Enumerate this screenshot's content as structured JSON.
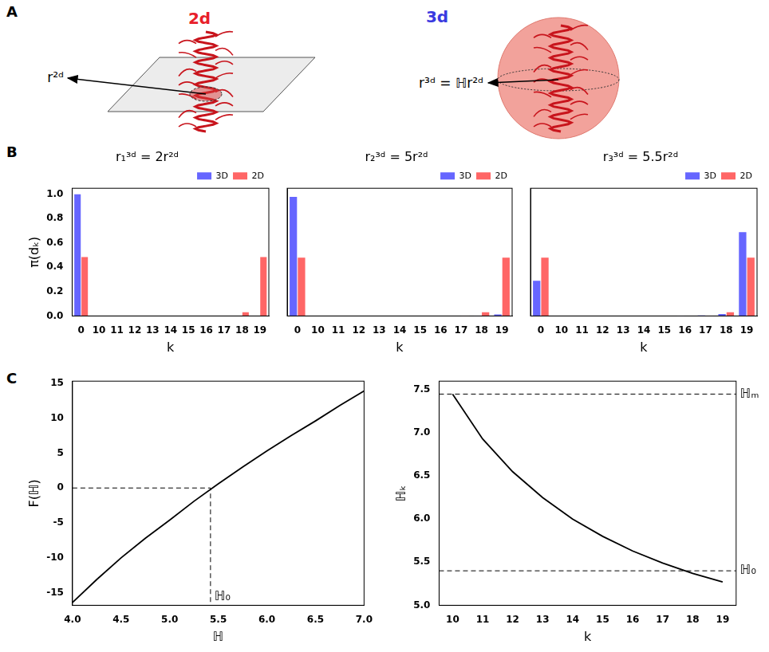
{
  "diagram": {
    "panel": "A",
    "items": [
      {
        "title": "2d",
        "color": "#e8202a",
        "label": "r²ᵈ"
      },
      {
        "title": "3d",
        "color": "#3a3ae0",
        "label": "r³ᵈ = ℍr²ᵈ"
      }
    ]
  },
  "chart_data": [
    {
      "panel": "B",
      "type": "bar",
      "title": "r₁³ᵈ = 2r²ᵈ",
      "x_label": "k",
      "y_label": "π(dₖ)",
      "categories": [
        0,
        10,
        11,
        12,
        13,
        14,
        15,
        16,
        17,
        18,
        19
      ],
      "series": [
        {
          "name": "3D",
          "color": "#6666ff",
          "values": [
            1.0,
            0,
            0,
            0,
            0,
            0,
            0,
            0,
            0,
            0,
            0
          ]
        },
        {
          "name": "2D",
          "color": "#ff6666",
          "values": [
            0.485,
            0,
            0,
            0,
            0,
            0,
            0,
            0,
            0,
            0.03,
            0.485
          ]
        }
      ],
      "ylim": [
        0,
        1.05
      ],
      "yticks": [
        {
          "value": 0,
          "label": "0.0"
        },
        0.2,
        0.4,
        0.6,
        0.8,
        {
          "value": 1,
          "label": "1.0"
        }
      ],
      "legend": "upper right",
      "grid": false
    },
    {
      "type": "bar",
      "title": "r₂³ᵈ = 5r²ᵈ",
      "x_label": "k",
      "categories": [
        0,
        10,
        11,
        12,
        13,
        14,
        15,
        16,
        17,
        18,
        19
      ],
      "series": [
        {
          "name": "3D",
          "color": "#6666ff",
          "values": [
            0.98,
            0,
            0,
            0,
            0,
            0,
            0,
            0,
            0,
            0.003,
            0.012
          ]
        },
        {
          "name": "2D",
          "color": "#ff6666",
          "values": [
            0.48,
            0,
            0,
            0,
            0,
            0,
            0,
            0,
            0.002,
            0.03,
            0.48
          ]
        }
      ],
      "ylim": [
        0,
        1.05
      ],
      "yticks": [
        {
          "value": 0,
          "label": "0.0"
        },
        0.2,
        0.4,
        0.6,
        0.8,
        {
          "value": 1,
          "label": "1.0"
        }
      ],
      "legend": "upper right",
      "grid": false,
      "tick_labels": "x"
    },
    {
      "type": "bar",
      "title": "r₃³ᵈ = 5.5r²ᵈ",
      "x_label": "k",
      "categories": [
        0,
        10,
        11,
        12,
        13,
        14,
        15,
        16,
        17,
        18,
        19
      ],
      "series": [
        {
          "name": "3D",
          "color": "#6666ff",
          "values": [
            0.29,
            0,
            0,
            0,
            0,
            0,
            0,
            0.002,
            0.004,
            0.015,
            0.69
          ]
        },
        {
          "name": "2D",
          "color": "#ff6666",
          "values": [
            0.48,
            0,
            0,
            0,
            0,
            0,
            0,
            0,
            0.002,
            0.03,
            0.48
          ]
        }
      ],
      "ylim": [
        0,
        1.05
      ],
      "yticks": [
        {
          "value": 0,
          "label": "0.0"
        },
        0.2,
        0.4,
        0.6,
        0.8,
        {
          "value": 1,
          "label": "1.0"
        }
      ],
      "legend": "upper right",
      "grid": false,
      "tick_labels": "x"
    },
    {
      "panel": "C",
      "type": "line",
      "x_label": "ℍ",
      "y_label": "F(ℍ)",
      "color": "#000000",
      "x": [
        4.0,
        4.25,
        4.5,
        4.75,
        5.0,
        5.25,
        5.5,
        5.75,
        6.0,
        6.25,
        6.5,
        6.75,
        7.0
      ],
      "values": [
        -16.4,
        -13.1,
        -10.0,
        -7.2,
        -4.6,
        -1.9,
        0.6,
        3.0,
        5.3,
        7.5,
        9.6,
        11.8,
        13.9
      ],
      "xlim": [
        4.0,
        7.0
      ],
      "xticks": [
        {
          "value": 4,
          "label": "4.0"
        },
        4.5,
        {
          "value": 5,
          "label": "5.0"
        },
        5.5,
        {
          "value": 6,
          "label": "6.0"
        },
        6.5,
        {
          "value": 7,
          "label": "7.0"
        }
      ],
      "ylim": [
        -16.8,
        15.3
      ],
      "yticks": [
        -15,
        -10,
        -5,
        0,
        5,
        10,
        15
      ],
      "annotations": [
        {
          "text": "ℍ₀",
          "x": 5.42,
          "y": 0
        }
      ],
      "grid": false
    },
    {
      "type": "line",
      "x_label": "k",
      "y_label": "ℍₖ",
      "color": "#000000",
      "x": [
        10,
        11,
        12,
        13,
        14,
        15,
        16,
        17,
        18,
        19
      ],
      "values": [
        7.45,
        6.93,
        6.55,
        6.25,
        6.0,
        5.8,
        5.63,
        5.49,
        5.37,
        5.27
      ],
      "xlim": [
        9.55,
        19.45
      ],
      "xticks": [
        10,
        11,
        12,
        13,
        14,
        15,
        16,
        17,
        18,
        19
      ],
      "ylim": [
        5.0,
        7.6
      ],
      "yticks": [
        {
          "value": 5,
          "label": "5.0"
        },
        5.5,
        {
          "value": 6,
          "label": "6.0"
        },
        6.5,
        {
          "value": 7,
          "label": "7.0"
        },
        7.5
      ],
      "annotations": [
        {
          "text": "ℍₘ",
          "y": 7.45
        },
        {
          "text": "ℍ₀",
          "y": 5.4
        }
      ],
      "grid": false
    }
  ]
}
